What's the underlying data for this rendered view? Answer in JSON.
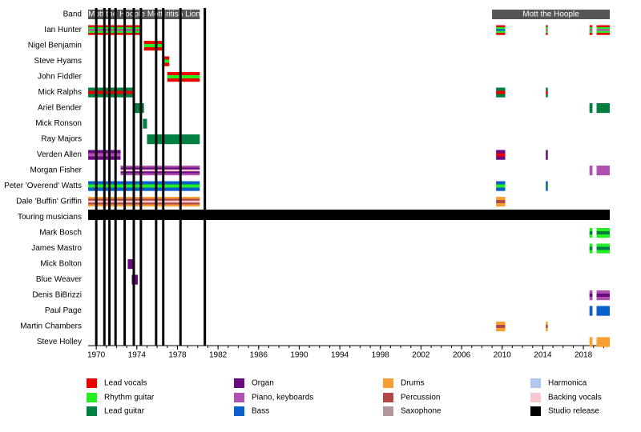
{
  "chart_data": {
    "type": "timeline",
    "xlim": [
      1969.2,
      2020.6
    ],
    "xticks": [
      1970,
      1974,
      1978,
      1982,
      1986,
      1990,
      1994,
      1998,
      2002,
      2006,
      2010,
      2014,
      2018
    ],
    "band_color": "#555555",
    "roles": [
      {
        "name": "Lead vocals",
        "color": "#ee0000"
      },
      {
        "name": "Rhythm guitar",
        "color": "#22ee22"
      },
      {
        "name": "Lead guitar",
        "color": "#008040"
      },
      {
        "name": "Organ",
        "color": "#6a0a80"
      },
      {
        "name": "Piano, keyboards",
        "color": "#b050b0"
      },
      {
        "name": "Bass",
        "color": "#0a60c8"
      },
      {
        "name": "Drums",
        "color": "#f5a030"
      },
      {
        "name": "Percussion",
        "color": "#b04848"
      },
      {
        "name": "Saxophone",
        "color": "#b09898"
      },
      {
        "name": "Harmonica",
        "color": "#b0c8f0"
      },
      {
        "name": "Backing vocals",
        "color": "#f8c8d0"
      },
      {
        "name": "Studio release",
        "color": "#000000"
      }
    ],
    "studio_releases": [
      1970.0,
      1970.8,
      1971.3,
      1971.9,
      1972.8,
      1973.7,
      1974.4,
      1975.9,
      1976.6,
      1978.3,
      1980.7
    ],
    "rows": [
      {
        "label": "Band",
        "periods": [
          {
            "name": "Mott the Hoople",
            "start": 1969.2,
            "end": 1974.8
          },
          {
            "name": "Mott",
            "start": 1974.8,
            "end": 1976.8
          },
          {
            "name": "British Lions",
            "start": 1976.8,
            "end": 1980.2
          },
          {
            "name": "Mott the Hoople",
            "start": 2009.0,
            "end": 2020.6
          }
        ]
      },
      {
        "label": "Ian Hunter",
        "periods": [
          {
            "start": 1969.2,
            "end": 1974.5,
            "roles": [
              0,
              1,
              4
            ]
          },
          {
            "start": 2009.4,
            "end": 2010.3,
            "roles": [
              0,
              1,
              5
            ]
          },
          {
            "start": 2014.3,
            "end": 2014.5,
            "roles": [
              0,
              1,
              4
            ]
          },
          {
            "start": 2018.6,
            "end": 2018.9,
            "roles": [
              0,
              1,
              4
            ]
          },
          {
            "start": 2019.3,
            "end": 2020.6,
            "roles": [
              0,
              1,
              4
            ]
          }
        ]
      },
      {
        "label": "Nigel Benjamin",
        "periods": [
          {
            "start": 1974.7,
            "end": 1976.6,
            "roles": [
              0,
              1
            ]
          }
        ]
      },
      {
        "label": "Steve Hyams",
        "periods": [
          {
            "start": 1976.6,
            "end": 1977.2,
            "roles": [
              0,
              1
            ]
          }
        ]
      },
      {
        "label": "John Fiddler",
        "periods": [
          {
            "start": 1977.0,
            "end": 1980.2,
            "roles": [
              0,
              1
            ]
          }
        ]
      },
      {
        "label": "Mick Ralphs",
        "periods": [
          {
            "start": 1969.2,
            "end": 1973.6,
            "roles": [
              2,
              0
            ]
          },
          {
            "start": 2009.4,
            "end": 2010.3,
            "roles": [
              2,
              0
            ]
          },
          {
            "start": 2014.3,
            "end": 2014.5,
            "roles": [
              2,
              0
            ]
          }
        ]
      },
      {
        "label": "Ariel Bender",
        "periods": [
          {
            "start": 1973.6,
            "end": 1974.7,
            "roles": [
              2
            ]
          },
          {
            "start": 2018.6,
            "end": 2018.9,
            "roles": [
              2
            ]
          },
          {
            "start": 2019.3,
            "end": 2020.6,
            "roles": [
              2
            ]
          }
        ]
      },
      {
        "label": "Mick Ronson",
        "periods": [
          {
            "start": 1974.6,
            "end": 1975.0,
            "roles": [
              2
            ]
          }
        ]
      },
      {
        "label": "Ray Majors",
        "periods": [
          {
            "start": 1975.0,
            "end": 1980.2,
            "roles": [
              2
            ]
          }
        ]
      },
      {
        "label": "Verden Allen",
        "periods": [
          {
            "start": 1969.2,
            "end": 1972.4,
            "roles": [
              3,
              4
            ]
          },
          {
            "start": 2009.4,
            "end": 2010.3,
            "roles": [
              3,
              0
            ]
          },
          {
            "start": 2014.3,
            "end": 2014.5,
            "roles": [
              3
            ]
          }
        ]
      },
      {
        "label": "Morgan Fisher",
        "periods": [
          {
            "start": 1972.4,
            "end": 1980.2,
            "roles": [
              4,
              3,
              10
            ]
          },
          {
            "start": 2018.6,
            "end": 2018.9,
            "roles": [
              4
            ]
          },
          {
            "start": 2019.3,
            "end": 2020.6,
            "roles": [
              4
            ]
          }
        ]
      },
      {
        "label": "Peter 'Overend' Watts",
        "periods": [
          {
            "start": 1969.2,
            "end": 1980.2,
            "roles": [
              5,
              1
            ]
          },
          {
            "start": 2009.4,
            "end": 2010.3,
            "roles": [
              5,
              1
            ]
          },
          {
            "start": 2014.3,
            "end": 2014.5,
            "roles": [
              5,
              2
            ]
          }
        ]
      },
      {
        "label": "Dale 'Buffin' Griffin",
        "periods": [
          {
            "start": 1969.2,
            "end": 1980.2,
            "roles": [
              6,
              7,
              10
            ]
          },
          {
            "start": 2009.4,
            "end": 2010.3,
            "roles": [
              6,
              7
            ]
          }
        ]
      },
      {
        "label": "Touring musicians",
        "periods": []
      },
      {
        "label": "Mark Bosch",
        "periods": [
          {
            "start": 2018.6,
            "end": 2018.9,
            "roles": [
              1,
              2
            ]
          },
          {
            "start": 2019.3,
            "end": 2020.6,
            "roles": [
              1,
              2
            ]
          }
        ]
      },
      {
        "label": "James Mastro",
        "periods": [
          {
            "start": 2018.6,
            "end": 2018.9,
            "roles": [
              1,
              2
            ]
          },
          {
            "start": 2019.3,
            "end": 2020.6,
            "roles": [
              1,
              2
            ]
          }
        ]
      },
      {
        "label": "Mick Bolton",
        "periods": [
          {
            "start": 1973.1,
            "end": 1973.6,
            "roles": [
              3
            ]
          }
        ]
      },
      {
        "label": "Blue Weaver",
        "periods": [
          {
            "start": 1973.5,
            "end": 1974.1,
            "roles": [
              3
            ]
          }
        ]
      },
      {
        "label": "Denis BiBrizzi",
        "periods": [
          {
            "start": 2018.6,
            "end": 2018.9,
            "roles": [
              4,
              3
            ]
          },
          {
            "start": 2019.3,
            "end": 2020.6,
            "roles": [
              4,
              3
            ]
          }
        ]
      },
      {
        "label": "Paul Page",
        "periods": [
          {
            "start": 2018.6,
            "end": 2018.9,
            "roles": [
              5
            ]
          },
          {
            "start": 2019.3,
            "end": 2020.6,
            "roles": [
              5
            ]
          }
        ]
      },
      {
        "label": "Martin Chambers",
        "periods": [
          {
            "start": 2009.4,
            "end": 2010.3,
            "roles": [
              6,
              7
            ]
          },
          {
            "start": 2014.3,
            "end": 2014.5,
            "roles": [
              6,
              7
            ]
          }
        ]
      },
      {
        "label": "Steve Holley",
        "periods": [
          {
            "start": 2018.6,
            "end": 2018.9,
            "roles": [
              6
            ]
          },
          {
            "start": 2019.3,
            "end": 2020.6,
            "roles": [
              6
            ]
          }
        ]
      }
    ]
  }
}
